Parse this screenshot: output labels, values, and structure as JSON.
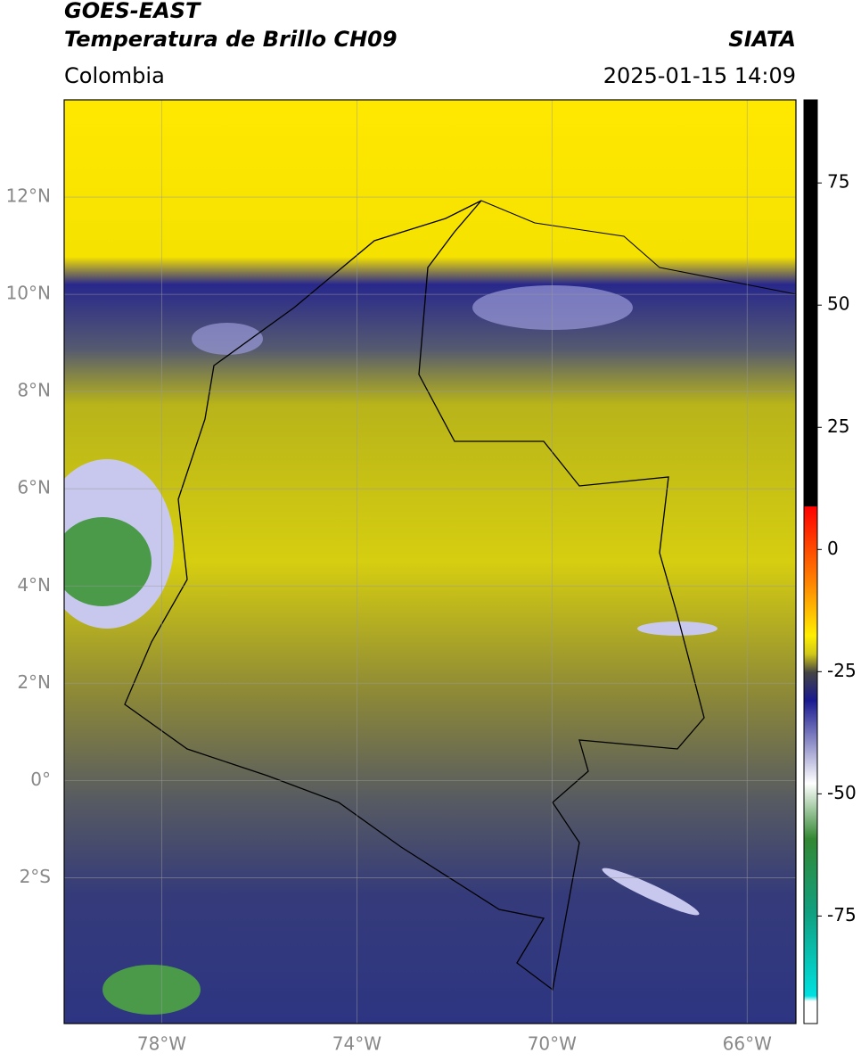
{
  "header": {
    "source": "GOES-EAST",
    "title": "Temperatura de Brillo CH09",
    "agency": "SIATA",
    "region": "Colombia",
    "datetime": "2025-01-15 14:09"
  },
  "map": {
    "lonlim": [
      -80,
      -65
    ],
    "latlim": [
      -5,
      14
    ],
    "lon_ticks": [
      {
        "value": -78,
        "label": "78°W"
      },
      {
        "value": -74,
        "label": "74°W"
      },
      {
        "value": -70,
        "label": "70°W"
      },
      {
        "value": -66,
        "label": "66°W"
      }
    ],
    "lat_ticks": [
      {
        "value": 12,
        "label": "12°N"
      },
      {
        "value": 10,
        "label": "10°N"
      },
      {
        "value": 8,
        "label": "8°N"
      },
      {
        "value": 6,
        "label": "6°N"
      },
      {
        "value": 4,
        "label": "4°N"
      },
      {
        "value": 2,
        "label": "2°N"
      },
      {
        "value": 0,
        "label": "0°"
      },
      {
        "value": -2,
        "label": "2°S"
      }
    ]
  },
  "colorbar": {
    "lim": [
      -97,
      92
    ],
    "ticks": [
      75,
      50,
      25,
      0,
      -25,
      -50,
      -75
    ]
  }
}
